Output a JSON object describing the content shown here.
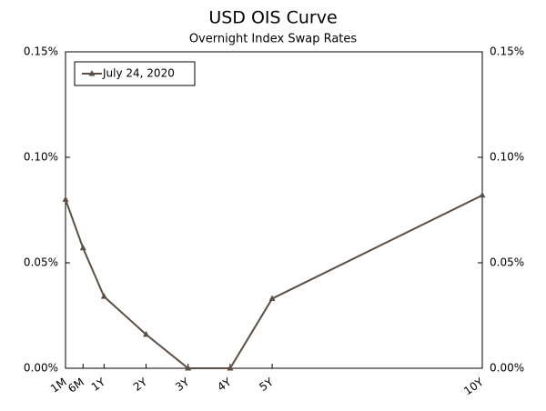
{
  "chart_data": {
    "type": "line",
    "title": "USD OIS Curve",
    "subtitle": "Overnight Index Swap Rates",
    "x": [
      0.0833,
      0.5,
      1,
      2,
      3,
      4,
      5,
      10
    ],
    "xlim": [
      0.0833,
      10
    ],
    "xticks": [
      {
        "value": 0.0833,
        "label": "1M"
      },
      {
        "value": 0.5,
        "label": "6M"
      },
      {
        "value": 1,
        "label": "1Y"
      },
      {
        "value": 2,
        "label": "2Y"
      },
      {
        "value": 3,
        "label": "3Y"
      },
      {
        "value": 4,
        "label": "4Y"
      },
      {
        "value": 5,
        "label": "5Y"
      },
      {
        "value": 10,
        "label": "10Y"
      }
    ],
    "ylim": [
      0,
      0.15
    ],
    "yticks": [
      {
        "value": 0,
        "label": "0.00%"
      },
      {
        "value": 0.05,
        "label": "0.05%"
      },
      {
        "value": 0.1,
        "label": "0.10%"
      },
      {
        "value": 0.15,
        "label": "0.15%"
      }
    ],
    "series": [
      {
        "name": "July 24, 2020",
        "color": "#5b4f45",
        "values": [
          0.08,
          0.057,
          0.034,
          0.016,
          0.0,
          0.0,
          0.033,
          0.082
        ]
      }
    ],
    "legend": "upper left",
    "grid": false
  }
}
